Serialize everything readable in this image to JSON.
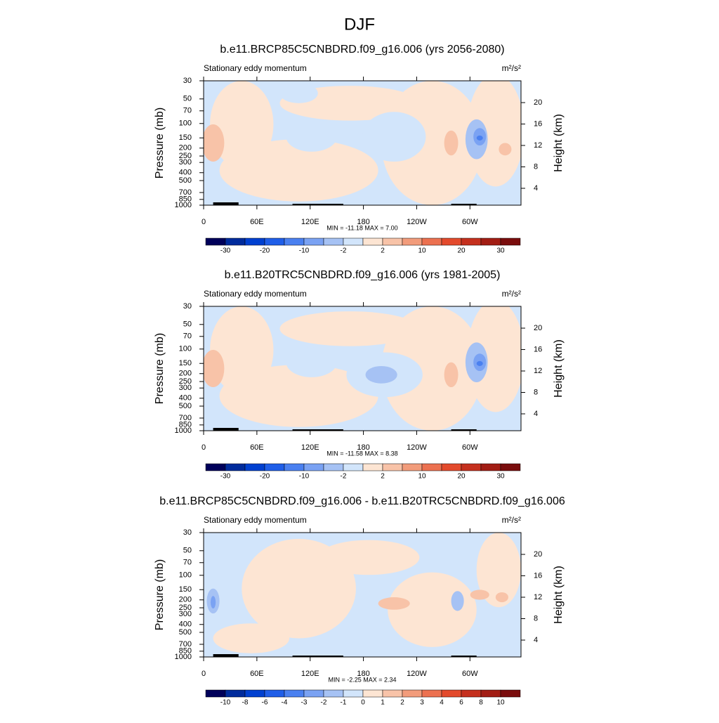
{
  "title": "DJF",
  "chart_data": [
    {
      "type": "contour",
      "title": "b.e11.BRCP85C5CNBDRD.f09_g16.006 (yrs 2056-2080)",
      "subtitle": "Stationary eddy momentum",
      "units": "m²/s²",
      "y_label": "Pressure (mb)",
      "y2_label": "Height (km)",
      "log_y": true,
      "xlim": [
        0,
        357.5
      ],
      "xticks": [
        0,
        {
          "value": 60,
          "label": "60E"
        },
        {
          "value": 120,
          "label": "120E"
        },
        180,
        {
          "value": 240,
          "label": "120W"
        },
        {
          "value": 300,
          "label": "60W"
        }
      ],
      "ylim": [
        1000,
        30
      ],
      "yticks": [
        30,
        50,
        70,
        100,
        150,
        200,
        250,
        300,
        400,
        500,
        700,
        850,
        1000
      ],
      "y2lim": [
        0.85,
        24.07
      ],
      "y2ticks": [
        4,
        8,
        12,
        16,
        20
      ],
      "stats": "MIN = -11.18  MAX =   7.00",
      "colorbar": {
        "colors": [
          "#00005a",
          "#002b9c",
          "#0040d0",
          "#1f5ee8",
          "#4a80f0",
          "#7aa2f3",
          "#a6c2f4",
          "#d2e5fb",
          "#fde5d3",
          "#f8c3a8",
          "#f29c7b",
          "#ec7150",
          "#e34a2c",
          "#c5301e",
          "#a21d14",
          "#7a0d0d"
        ],
        "labels": [
          null,
          -30,
          null,
          -20,
          null,
          -10,
          null,
          -2,
          null,
          2,
          null,
          10,
          null,
          20,
          null,
          30,
          null
        ]
      }
    },
    {
      "type": "contour",
      "title": "b.e11.B20TRC5CNBDRD.f09_g16.006 (yrs 1981-2005)",
      "subtitle": "Stationary eddy momentum",
      "units": "m²/s²",
      "y_label": "Pressure (mb)",
      "y2_label": "Height (km)",
      "log_y": true,
      "xlim": [
        0,
        357.5
      ],
      "xticks": [
        0,
        {
          "value": 60,
          "label": "60E"
        },
        {
          "value": 120,
          "label": "120E"
        },
        180,
        {
          "value": 240,
          "label": "120W"
        },
        {
          "value": 300,
          "label": "60W"
        }
      ],
      "ylim": [
        1000,
        30
      ],
      "yticks": [
        30,
        50,
        70,
        100,
        150,
        200,
        250,
        300,
        400,
        500,
        700,
        850,
        1000
      ],
      "y2lim": [
        0.85,
        24.07
      ],
      "y2ticks": [
        4,
        8,
        12,
        16,
        20
      ],
      "stats": "MIN = -11.58  MAX =   8.38",
      "colorbar": {
        "colors": [
          "#00005a",
          "#002b9c",
          "#0040d0",
          "#1f5ee8",
          "#4a80f0",
          "#7aa2f3",
          "#a6c2f4",
          "#d2e5fb",
          "#fde5d3",
          "#f8c3a8",
          "#f29c7b",
          "#ec7150",
          "#e34a2c",
          "#c5301e",
          "#a21d14",
          "#7a0d0d"
        ],
        "labels": [
          null,
          -30,
          null,
          -20,
          null,
          -10,
          null,
          -2,
          null,
          2,
          null,
          10,
          null,
          20,
          null,
          30,
          null
        ]
      }
    },
    {
      "type": "contour",
      "title": "b.e11.BRCP85C5CNBDRD.f09_g16.006 - b.e11.B20TRC5CNBDRD.f09_g16.006",
      "subtitle": "Stationary eddy momentum",
      "units": "m²/s²",
      "y_label": "Pressure (mb)",
      "y2_label": "Height (km)",
      "log_y": true,
      "xlim": [
        0,
        357.5
      ],
      "xticks": [
        0,
        {
          "value": 60,
          "label": "60E"
        },
        {
          "value": 120,
          "label": "120E"
        },
        180,
        {
          "value": 240,
          "label": "120W"
        },
        {
          "value": 300,
          "label": "60W"
        }
      ],
      "ylim": [
        1000,
        30
      ],
      "yticks": [
        30,
        50,
        70,
        100,
        150,
        200,
        250,
        300,
        400,
        500,
        700,
        850,
        1000
      ],
      "y2lim": [
        0.85,
        24.07
      ],
      "y2ticks": [
        4,
        8,
        12,
        16,
        20
      ],
      "stats": "MIN = -2.25  MAX =   2.34",
      "colorbar": {
        "colors": [
          "#00005a",
          "#002b9c",
          "#0040d0",
          "#1f5ee8",
          "#4a80f0",
          "#7aa2f3",
          "#a6c2f4",
          "#d2e5fb",
          "#fde5d3",
          "#f8c3a8",
          "#f29c7b",
          "#ec7150",
          "#e34a2c",
          "#c5301e",
          "#a21d14",
          "#7a0d0d"
        ],
        "labels": [
          null,
          -10,
          -8,
          -6,
          -4,
          -3,
          -2,
          -1,
          0,
          1,
          2,
          3,
          4,
          6,
          8,
          10,
          null
        ]
      }
    }
  ]
}
